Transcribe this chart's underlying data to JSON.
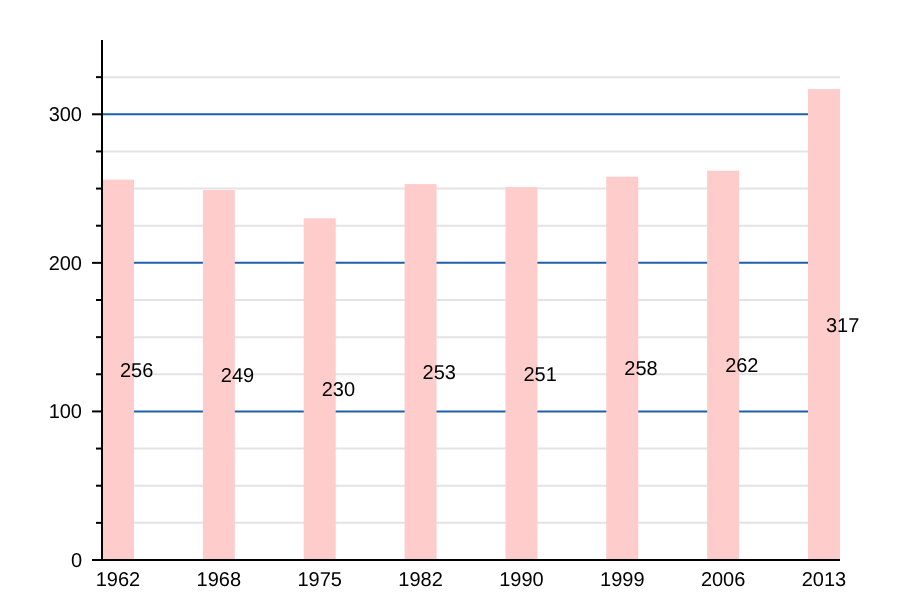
{
  "chart_data": {
    "type": "bar",
    "categories": [
      "1962",
      "1968",
      "1975",
      "1982",
      "1990",
      "1999",
      "2006",
      "2013"
    ],
    "values": [
      256,
      249,
      230,
      253,
      251,
      258,
      262,
      317
    ],
    "color": "#ffcccc",
    "data_labels": true,
    "ylim": [
      0,
      350
    ],
    "yticks": [
      0,
      {
        "value": 25,
        "label": null
      },
      {
        "value": 50,
        "label": null
      },
      {
        "value": 75,
        "label": null
      },
      100,
      {
        "value": 125,
        "label": null
      },
      {
        "value": 150,
        "label": null
      },
      {
        "value": 175,
        "label": null
      },
      200,
      {
        "value": 225,
        "label": null
      },
      {
        "value": 250,
        "label": null
      },
      {
        "value": 275,
        "label": null
      },
      300,
      {
        "value": 325,
        "label": null
      }
    ],
    "grid": "y"
  }
}
